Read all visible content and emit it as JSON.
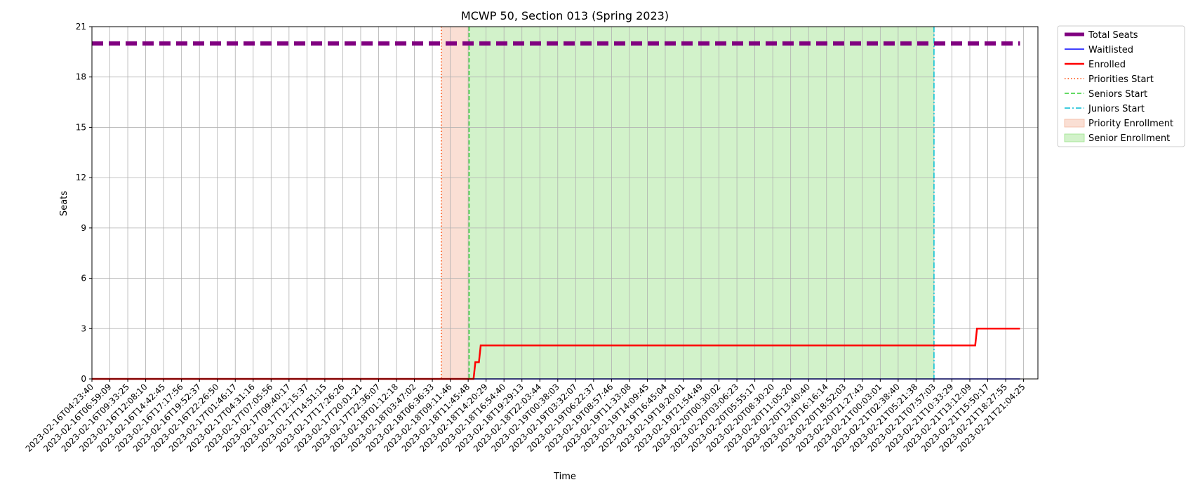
{
  "chart_data": {
    "type": "line",
    "title": "MCWP 50, Section 013 (Spring 2023)",
    "xlabel": "Time",
    "ylabel": "Seats",
    "ylim": [
      0,
      21
    ],
    "y_ticks": [
      0,
      3,
      6,
      9,
      12,
      15,
      18,
      21
    ],
    "grid": true,
    "legend_position": "outside-right",
    "x_ticks": [
      "2023-02-16T04:23:40",
      "2023-02-16T06:59:09",
      "2023-02-16T09:33:25",
      "2023-02-16T12:08:10",
      "2023-02-16T14:42:45",
      "2023-02-16T17:17:56",
      "2023-02-16T19:52:37",
      "2023-02-16T22:26:50",
      "2023-02-17T01:46:17",
      "2023-02-17T04:31:16",
      "2023-02-17T07:05:56",
      "2023-02-17T09:40:17",
      "2023-02-17T12:15:37",
      "2023-02-17T14:51:15",
      "2023-02-17T17:26:26",
      "2023-02-17T20:01:21",
      "2023-02-17T22:36:07",
      "2023-02-18T01:12:18",
      "2023-02-18T03:47:02",
      "2023-02-18T06:36:33",
      "2023-02-18T09:11:46",
      "2023-02-18T11:45:48",
      "2023-02-18T14:20:29",
      "2023-02-18T16:54:40",
      "2023-02-18T19:29:13",
      "2023-02-18T22:03:44",
      "2023-02-19T00:38:03",
      "2023-02-19T03:32:07",
      "2023-02-19T06:22:37",
      "2023-02-19T08:57:46",
      "2023-02-19T11:33:08",
      "2023-02-19T14:09:45",
      "2023-02-19T16:45:04",
      "2023-02-19T19:20:01",
      "2023-02-19T21:54:49",
      "2023-02-20T00:30:02",
      "2023-02-20T03:06:23",
      "2023-02-20T05:55:17",
      "2023-02-20T08:30:20",
      "2023-02-20T11:05:20",
      "2023-02-20T13:40:40",
      "2023-02-20T16:16:14",
      "2023-02-20T18:52:03",
      "2023-02-20T21:27:43",
      "2023-02-21T00:03:01",
      "2023-02-21T02:38:40",
      "2023-02-21T05:21:38",
      "2023-02-21T07:57:03",
      "2023-02-21T10:33:29",
      "2023-02-21T13:12:09",
      "2023-02-21T15:50:17",
      "2023-02-21T18:27:55",
      "2023-02-21T21:04:25"
    ],
    "series": [
      {
        "name": "Total Seats",
        "color": "#800080",
        "style": "dashed-thick",
        "points": [
          [
            0,
            20
          ],
          [
            51.8,
            20
          ]
        ]
      },
      {
        "name": "Waitlisted",
        "color": "#0000ff",
        "style": "solid-thin",
        "points": [
          [
            0,
            0
          ],
          [
            51.8,
            0
          ]
        ]
      },
      {
        "name": "Enrolled",
        "color": "#ff0000",
        "style": "solid-thick",
        "points": [
          [
            0,
            0
          ],
          [
            21.3,
            0
          ],
          [
            21.4,
            1
          ],
          [
            21.6,
            1
          ],
          [
            21.7,
            2
          ],
          [
            49.3,
            2
          ],
          [
            49.4,
            3
          ],
          [
            51.8,
            3
          ]
        ]
      }
    ],
    "vlines": [
      {
        "name": "Priorities Start",
        "color": "#ff4500",
        "style": "dotted",
        "x": 19.5
      },
      {
        "name": "Seniors Start",
        "color": "#32cd32",
        "style": "dashed",
        "x": 21.05
      },
      {
        "name": "Juniors Start",
        "color": "#00bcd4",
        "style": "dashdot",
        "x": 47.0
      }
    ],
    "spans": [
      {
        "name": "Priority Enrollment",
        "color": "#f4b9a0",
        "x_start": 19.5,
        "x_end": 21.05
      },
      {
        "name": "Senior Enrollment",
        "color": "#9be38a",
        "x_start": 21.05,
        "x_end": 47.0
      }
    ],
    "legend": [
      {
        "label": "Total Seats",
        "kind": "line",
        "color": "#800080",
        "style": "dashed-thick"
      },
      {
        "label": "Waitlisted",
        "kind": "line",
        "color": "#0000ff",
        "style": "solid-thin"
      },
      {
        "label": "Enrolled",
        "kind": "line",
        "color": "#ff0000",
        "style": "solid-thick"
      },
      {
        "label": "Priorities Start",
        "kind": "line",
        "color": "#ff4500",
        "style": "dotted"
      },
      {
        "label": "Seniors Start",
        "kind": "line",
        "color": "#32cd32",
        "style": "dashed"
      },
      {
        "label": "Juniors Start",
        "kind": "line",
        "color": "#00bcd4",
        "style": "dashdot"
      },
      {
        "label": "Priority Enrollment",
        "kind": "patch",
        "color": "#f4b9a0"
      },
      {
        "label": "Senior Enrollment",
        "kind": "patch",
        "color": "#9be38a"
      }
    ]
  }
}
